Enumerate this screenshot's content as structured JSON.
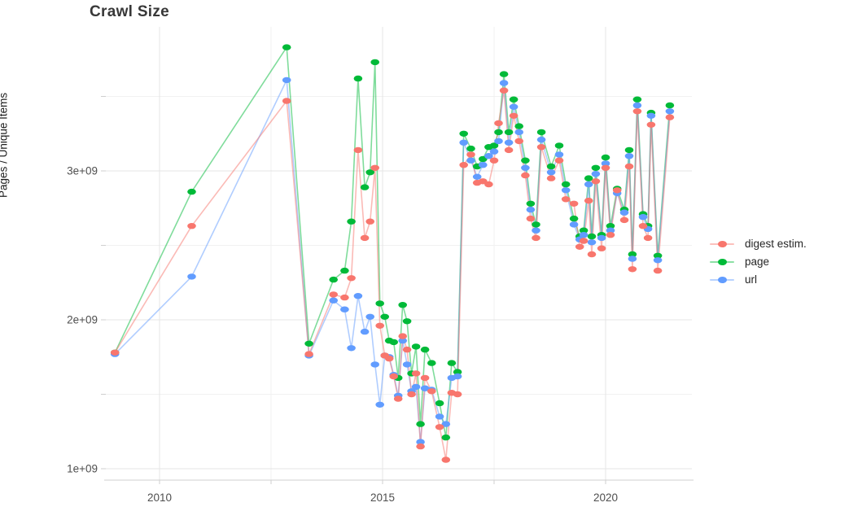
{
  "title": "Crawl Size",
  "y_axis": {
    "label": "Pages / Unique Items",
    "tick_labels": [
      "1e+09",
      "2e+09",
      "3e+09"
    ],
    "tick_values": [
      1,
      2,
      3
    ],
    "minor_values": [
      1.5,
      2.5,
      3.5
    ]
  },
  "x_axis": {
    "tick_labels": [
      "2010",
      "2015",
      "2020"
    ],
    "tick_values": [
      2010,
      2015,
      2020
    ],
    "minor_values": [
      2012.5,
      2017.5
    ]
  },
  "legend": {
    "items": [
      {
        "label": "digest estim.",
        "color": "#F8766D"
      },
      {
        "label": "page",
        "color": "#00BA38"
      },
      {
        "label": "url",
        "color": "#619CFF"
      }
    ]
  },
  "colors": {
    "grid_major": "#e5e5e5",
    "grid_minor": "#f1f1f1",
    "axis_line": "#cfcfcf",
    "tick_text": "#4f4f4f"
  },
  "chart_data": {
    "type": "line",
    "title": "Crawl Size",
    "xlabel": "",
    "ylabel": "Pages / Unique Items",
    "value_unit": "1e+09 items",
    "xlim": [
      2008.75,
      2021.95
    ],
    "ylim": [
      0.92,
      3.98
    ],
    "grid": true,
    "legend_position": "right",
    "x": [
      2009.0,
      2010.72,
      2012.85,
      2013.35,
      2013.9,
      2014.15,
      2014.3,
      2014.45,
      2014.6,
      2014.72,
      2014.83,
      2014.94,
      2015.05,
      2015.15,
      2015.25,
      2015.35,
      2015.45,
      2015.55,
      2015.65,
      2015.75,
      2015.85,
      2015.95,
      2016.1,
      2016.28,
      2016.42,
      2016.55,
      2016.68,
      2016.82,
      2016.98,
      2017.12,
      2017.25,
      2017.38,
      2017.5,
      2017.6,
      2017.72,
      2017.83,
      2017.94,
      2018.06,
      2018.2,
      2018.32,
      2018.44,
      2018.56,
      2018.78,
      2018.96,
      2019.11,
      2019.29,
      2019.42,
      2019.51,
      2019.62,
      2019.69,
      2019.78,
      2019.91,
      2020.0,
      2020.11,
      2020.26,
      2020.42,
      2020.53,
      2020.6,
      2020.71,
      2020.84,
      2020.95,
      2021.02,
      2021.17,
      2021.44
    ],
    "series": [
      {
        "name": "page",
        "color": "#00BA38",
        "values": [
          1.78,
          2.86,
          3.83,
          1.84,
          2.27,
          2.33,
          2.66,
          3.62,
          2.89,
          2.99,
          3.73,
          2.11,
          2.02,
          1.86,
          1.85,
          1.61,
          2.1,
          1.99,
          1.64,
          1.82,
          1.3,
          1.8,
          1.71,
          1.44,
          1.21,
          1.71,
          1.65,
          3.25,
          3.15,
          3.03,
          3.08,
          3.16,
          3.17,
          3.26,
          3.65,
          3.26,
          3.48,
          3.3,
          3.07,
          2.78,
          2.64,
          3.26,
          3.03,
          3.17,
          2.91,
          2.68,
          2.56,
          2.6,
          2.95,
          2.56,
          3.02,
          2.57,
          3.09,
          2.63,
          2.88,
          2.74,
          3.14,
          2.44,
          3.48,
          2.71,
          2.63,
          3.39,
          2.43,
          3.44
        ]
      },
      {
        "name": "url",
        "color": "#619CFF",
        "values": [
          1.77,
          2.29,
          3.61,
          1.76,
          2.13,
          2.07,
          1.81,
          2.16,
          1.92,
          2.02,
          1.7,
          1.43,
          1.76,
          1.75,
          1.63,
          1.49,
          1.86,
          1.7,
          1.52,
          1.55,
          1.18,
          1.54,
          1.53,
          1.35,
          1.3,
          1.61,
          1.62,
          3.19,
          3.07,
          2.96,
          3.04,
          3.1,
          3.13,
          3.2,
          3.59,
          3.19,
          3.43,
          3.26,
          3.02,
          2.74,
          2.6,
          3.21,
          2.99,
          3.11,
          2.87,
          2.64,
          2.54,
          2.57,
          2.91,
          2.52,
          2.98,
          2.55,
          3.05,
          2.6,
          2.85,
          2.72,
          3.1,
          2.41,
          3.44,
          2.69,
          2.61,
          3.37,
          2.4,
          3.4
        ]
      },
      {
        "name": "digest estim.",
        "color": "#F8766D",
        "values": [
          1.78,
          2.63,
          3.47,
          1.77,
          2.17,
          2.15,
          2.28,
          3.14,
          2.55,
          2.66,
          3.02,
          1.96,
          1.76,
          1.74,
          1.62,
          1.47,
          1.89,
          1.8,
          1.5,
          1.64,
          1.15,
          1.61,
          1.52,
          1.28,
          1.06,
          1.51,
          1.5,
          3.04,
          3.11,
          2.92,
          2.93,
          2.91,
          3.07,
          3.32,
          3.54,
          3.14,
          3.37,
          3.2,
          2.97,
          2.68,
          2.55,
          3.16,
          2.95,
          3.07,
          2.81,
          2.78,
          2.49,
          2.53,
          2.8,
          2.44,
          2.93,
          2.48,
          3.02,
          2.57,
          2.87,
          2.67,
          3.03,
          2.34,
          3.4,
          2.63,
          2.55,
          3.31,
          2.33,
          3.36
        ]
      }
    ]
  }
}
